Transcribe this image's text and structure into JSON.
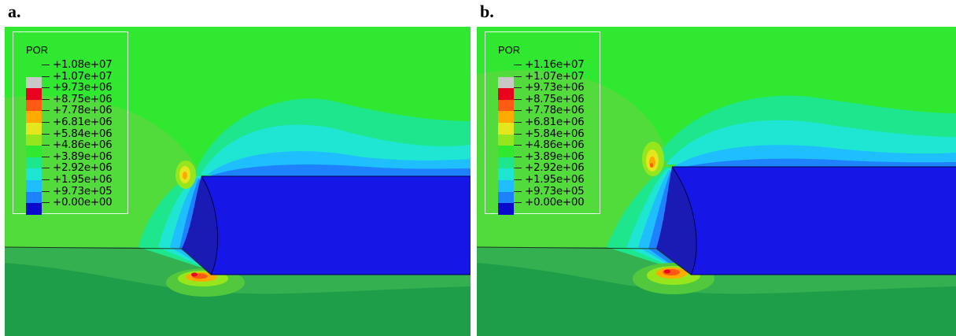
{
  "panels": [
    {
      "label": "a.",
      "legend_title": "POR",
      "legend_values": [
        "+1.08e+07",
        "+1.07e+07",
        "+9.73e+06",
        "+8.75e+06",
        "+7.78e+06",
        "+6.81e+06",
        "+5.84e+06",
        "+4.86e+06",
        "+3.89e+06",
        "+2.92e+06",
        "+1.95e+06",
        "+9.73e+05",
        "+0.00e+00"
      ]
    },
    {
      "label": "b.",
      "legend_title": "POR",
      "legend_values": [
        "+1.16e+07",
        "+1.07e+07",
        "+9.73e+06",
        "+8.75e+06",
        "+7.78e+06",
        "+6.81e+06",
        "+5.84e+06",
        "+4.86e+06",
        "+3.89e+06",
        "+2.92e+06",
        "+1.95e+06",
        "+9.73e+05",
        "+0.00e+00"
      ]
    }
  ],
  "legend_colors": [
    "#c8c8c8",
    "#e8001e",
    "#ff5a14",
    "#ffaa00",
    "#e6e61e",
    "#96e61e",
    "#2fe82f",
    "#1ee68c",
    "#1ee6d2",
    "#1ebeff",
    "#1e82ff",
    "#1e46f0",
    "#0a0acd"
  ]
}
